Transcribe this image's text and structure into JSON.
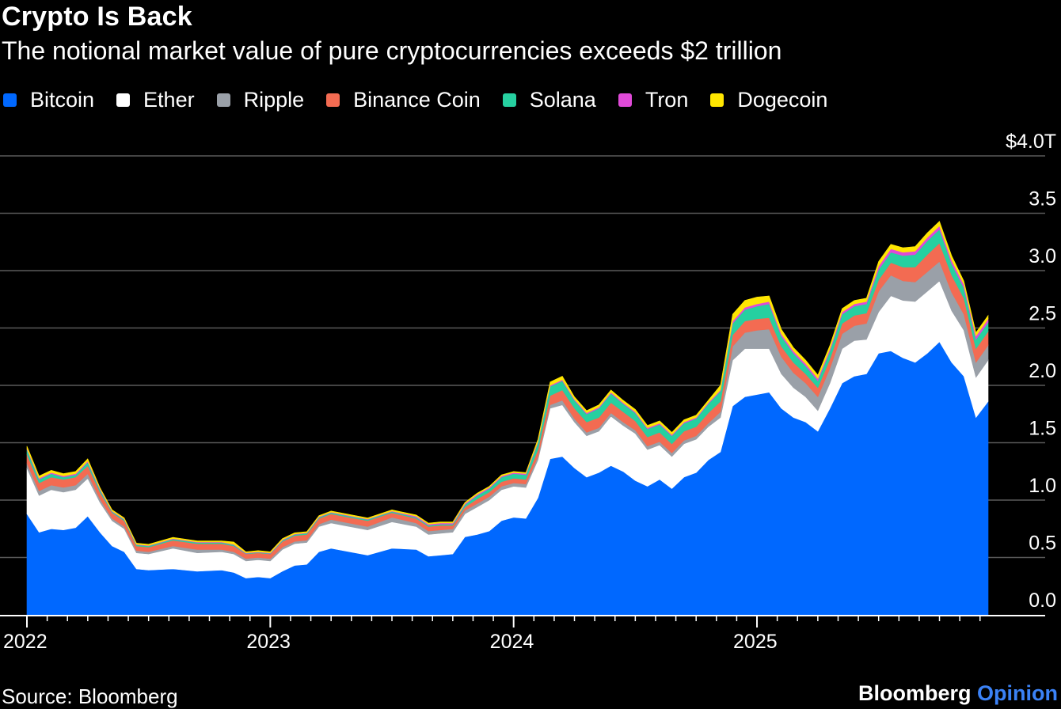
{
  "header": {
    "title": "Crypto Is Back",
    "subtitle": "The notional market value of pure cryptocurrencies exceeds $2 trillion"
  },
  "footer": {
    "source": "Source: Bloomberg",
    "brand": "Bloomberg",
    "brand_suffix": "Opinion"
  },
  "chart_data": {
    "type": "area",
    "stacked": true,
    "x_unit": "year",
    "xlim": [
      2022.0,
      2026.0
    ],
    "ylim": [
      0,
      4.0
    ],
    "yticks": [
      {
        "value": 0,
        "label": "0.0"
      },
      {
        "value": 0.5,
        "label": "0.5"
      },
      {
        "value": 1.0,
        "label": "1.0"
      },
      {
        "value": 1.5,
        "label": "1.5"
      },
      {
        "value": 2.0,
        "label": "2.0"
      },
      {
        "value": 2.5,
        "label": "2.5"
      },
      {
        "value": 3.0,
        "label": "3.0"
      },
      {
        "value": 3.5,
        "label": "3.5"
      },
      {
        "value": 4.0,
        "label": "$4.0T"
      }
    ],
    "xticks": [
      {
        "value": 2022,
        "label": "2022"
      },
      {
        "value": 2023,
        "label": "2023"
      },
      {
        "value": 2024,
        "label": "2024"
      },
      {
        "value": 2025,
        "label": "2025"
      }
    ],
    "grid": true,
    "legend_position": "top",
    "x": [
      2022.0,
      2022.05,
      2022.1,
      2022.15,
      2022.2,
      2022.25,
      2022.3,
      2022.35,
      2022.4,
      2022.45,
      2022.5,
      2022.6,
      2022.7,
      2022.8,
      2022.85,
      2022.9,
      2022.95,
      2023.0,
      2023.05,
      2023.1,
      2023.15,
      2023.2,
      2023.25,
      2023.3,
      2023.4,
      2023.5,
      2023.6,
      2023.65,
      2023.7,
      2023.75,
      2023.8,
      2023.85,
      2023.9,
      2023.95,
      2024.0,
      2024.05,
      2024.1,
      2024.15,
      2024.2,
      2024.25,
      2024.3,
      2024.35,
      2024.4,
      2024.45,
      2024.5,
      2024.55,
      2024.6,
      2024.65,
      2024.7,
      2024.75,
      2024.8,
      2024.85,
      2024.9,
      2024.95,
      2025.0,
      2025.05,
      2025.1,
      2025.15,
      2025.2,
      2025.25,
      2025.3,
      2025.35,
      2025.4,
      2025.45,
      2025.5,
      2025.55,
      2025.6,
      2025.65,
      2025.7,
      2025.75,
      2025.8,
      2025.85,
      2025.9,
      2025.95
    ],
    "series": [
      {
        "name": "Bitcoin",
        "color": "#0068ff",
        "values": [
          0.88,
          0.72,
          0.75,
          0.74,
          0.76,
          0.86,
          0.72,
          0.6,
          0.55,
          0.4,
          0.39,
          0.4,
          0.38,
          0.39,
          0.37,
          0.32,
          0.33,
          0.32,
          0.38,
          0.43,
          0.44,
          0.55,
          0.58,
          0.56,
          0.52,
          0.58,
          0.57,
          0.51,
          0.52,
          0.53,
          0.68,
          0.7,
          0.73,
          0.82,
          0.85,
          0.84,
          1.02,
          1.36,
          1.38,
          1.28,
          1.2,
          1.24,
          1.3,
          1.25,
          1.17,
          1.12,
          1.18,
          1.1,
          1.2,
          1.24,
          1.35,
          1.42,
          1.82,
          1.9,
          1.92,
          1.94,
          1.8,
          1.72,
          1.68,
          1.6,
          1.8,
          2.02,
          2.08,
          2.1,
          2.28,
          2.3,
          2.24,
          2.2,
          2.28,
          2.38,
          2.2,
          2.08,
          1.72,
          1.86
        ]
      },
      {
        "name": "Ether",
        "color": "#ffffff",
        "values": [
          0.4,
          0.32,
          0.34,
          0.33,
          0.33,
          0.33,
          0.26,
          0.22,
          0.2,
          0.14,
          0.14,
          0.18,
          0.16,
          0.16,
          0.16,
          0.15,
          0.15,
          0.15,
          0.19,
          0.19,
          0.19,
          0.22,
          0.22,
          0.22,
          0.22,
          0.23,
          0.2,
          0.19,
          0.19,
          0.19,
          0.2,
          0.24,
          0.27,
          0.27,
          0.27,
          0.27,
          0.33,
          0.44,
          0.45,
          0.4,
          0.36,
          0.36,
          0.43,
          0.4,
          0.41,
          0.32,
          0.3,
          0.28,
          0.29,
          0.29,
          0.29,
          0.3,
          0.4,
          0.42,
          0.4,
          0.38,
          0.3,
          0.26,
          0.22,
          0.18,
          0.22,
          0.3,
          0.31,
          0.3,
          0.36,
          0.48,
          0.5,
          0.53,
          0.54,
          0.53,
          0.45,
          0.4,
          0.35,
          0.36
        ]
      },
      {
        "name": "Ripple",
        "color": "#9aa0a8",
        "values": [
          0.04,
          0.04,
          0.04,
          0.04,
          0.04,
          0.04,
          0.03,
          0.02,
          0.02,
          0.02,
          0.02,
          0.02,
          0.03,
          0.02,
          0.02,
          0.02,
          0.02,
          0.02,
          0.02,
          0.02,
          0.02,
          0.02,
          0.03,
          0.03,
          0.03,
          0.04,
          0.03,
          0.03,
          0.03,
          0.03,
          0.03,
          0.03,
          0.03,
          0.03,
          0.03,
          0.03,
          0.03,
          0.03,
          0.04,
          0.03,
          0.03,
          0.03,
          0.03,
          0.03,
          0.03,
          0.03,
          0.03,
          0.03,
          0.03,
          0.03,
          0.03,
          0.05,
          0.12,
          0.14,
          0.16,
          0.17,
          0.15,
          0.13,
          0.12,
          0.12,
          0.13,
          0.13,
          0.13,
          0.14,
          0.18,
          0.18,
          0.17,
          0.17,
          0.17,
          0.17,
          0.16,
          0.14,
          0.13,
          0.13
        ]
      },
      {
        "name": "Binance Coin",
        "color": "#f36b52",
        "values": [
          0.08,
          0.07,
          0.07,
          0.07,
          0.07,
          0.07,
          0.06,
          0.05,
          0.05,
          0.04,
          0.04,
          0.05,
          0.05,
          0.05,
          0.05,
          0.04,
          0.04,
          0.04,
          0.05,
          0.05,
          0.05,
          0.05,
          0.05,
          0.05,
          0.05,
          0.04,
          0.04,
          0.04,
          0.04,
          0.03,
          0.03,
          0.04,
          0.04,
          0.04,
          0.04,
          0.04,
          0.06,
          0.08,
          0.09,
          0.09,
          0.09,
          0.09,
          0.09,
          0.09,
          0.08,
          0.08,
          0.08,
          0.08,
          0.08,
          0.08,
          0.09,
          0.09,
          0.1,
          0.1,
          0.1,
          0.1,
          0.09,
          0.09,
          0.08,
          0.08,
          0.08,
          0.09,
          0.09,
          0.09,
          0.1,
          0.11,
          0.12,
          0.13,
          0.15,
          0.16,
          0.15,
          0.14,
          0.12,
          0.12
        ]
      },
      {
        "name": "Solana",
        "color": "#26d0a0",
        "values": [
          0.04,
          0.03,
          0.03,
          0.02,
          0.02,
          0.03,
          0.02,
          0.01,
          0.01,
          0.01,
          0.01,
          0.01,
          0.01,
          0.01,
          0.01,
          0.005,
          0.005,
          0.005,
          0.01,
          0.01,
          0.01,
          0.01,
          0.01,
          0.01,
          0.01,
          0.01,
          0.01,
          0.01,
          0.01,
          0.01,
          0.02,
          0.03,
          0.03,
          0.04,
          0.04,
          0.04,
          0.06,
          0.08,
          0.08,
          0.07,
          0.07,
          0.08,
          0.08,
          0.07,
          0.07,
          0.07,
          0.07,
          0.07,
          0.07,
          0.07,
          0.08,
          0.09,
          0.1,
          0.1,
          0.11,
          0.12,
          0.09,
          0.08,
          0.07,
          0.06,
          0.07,
          0.08,
          0.08,
          0.08,
          0.09,
          0.09,
          0.1,
          0.11,
          0.12,
          0.12,
          0.1,
          0.09,
          0.08,
          0.08
        ]
      },
      {
        "name": "Tron",
        "color": "#e04ad8",
        "values": [
          0.01,
          0.01,
          0.01,
          0.01,
          0.01,
          0.01,
          0.01,
          0.005,
          0.005,
          0.005,
          0.005,
          0.005,
          0.005,
          0.005,
          0.005,
          0.005,
          0.005,
          0.005,
          0.005,
          0.005,
          0.005,
          0.005,
          0.005,
          0.005,
          0.005,
          0.005,
          0.01,
          0.01,
          0.01,
          0.01,
          0.01,
          0.01,
          0.01,
          0.01,
          0.01,
          0.01,
          0.01,
          0.01,
          0.01,
          0.01,
          0.01,
          0.01,
          0.01,
          0.01,
          0.01,
          0.01,
          0.01,
          0.01,
          0.01,
          0.01,
          0.01,
          0.01,
          0.02,
          0.02,
          0.02,
          0.02,
          0.02,
          0.02,
          0.02,
          0.02,
          0.02,
          0.02,
          0.02,
          0.02,
          0.03,
          0.03,
          0.03,
          0.03,
          0.03,
          0.03,
          0.03,
          0.03,
          0.03,
          0.03
        ]
      },
      {
        "name": "Dogecoin",
        "color": "#ffe600",
        "values": [
          0.02,
          0.02,
          0.02,
          0.02,
          0.02,
          0.02,
          0.01,
          0.01,
          0.01,
          0.01,
          0.01,
          0.01,
          0.01,
          0.01,
          0.02,
          0.01,
          0.01,
          0.01,
          0.01,
          0.01,
          0.01,
          0.01,
          0.01,
          0.01,
          0.01,
          0.01,
          0.01,
          0.01,
          0.01,
          0.01,
          0.01,
          0.01,
          0.01,
          0.01,
          0.01,
          0.01,
          0.02,
          0.03,
          0.03,
          0.02,
          0.02,
          0.02,
          0.02,
          0.02,
          0.02,
          0.02,
          0.02,
          0.02,
          0.02,
          0.02,
          0.02,
          0.04,
          0.06,
          0.06,
          0.06,
          0.05,
          0.04,
          0.03,
          0.03,
          0.03,
          0.03,
          0.03,
          0.03,
          0.03,
          0.04,
          0.04,
          0.04,
          0.04,
          0.04,
          0.04,
          0.04,
          0.03,
          0.03,
          0.03
        ]
      }
    ]
  }
}
